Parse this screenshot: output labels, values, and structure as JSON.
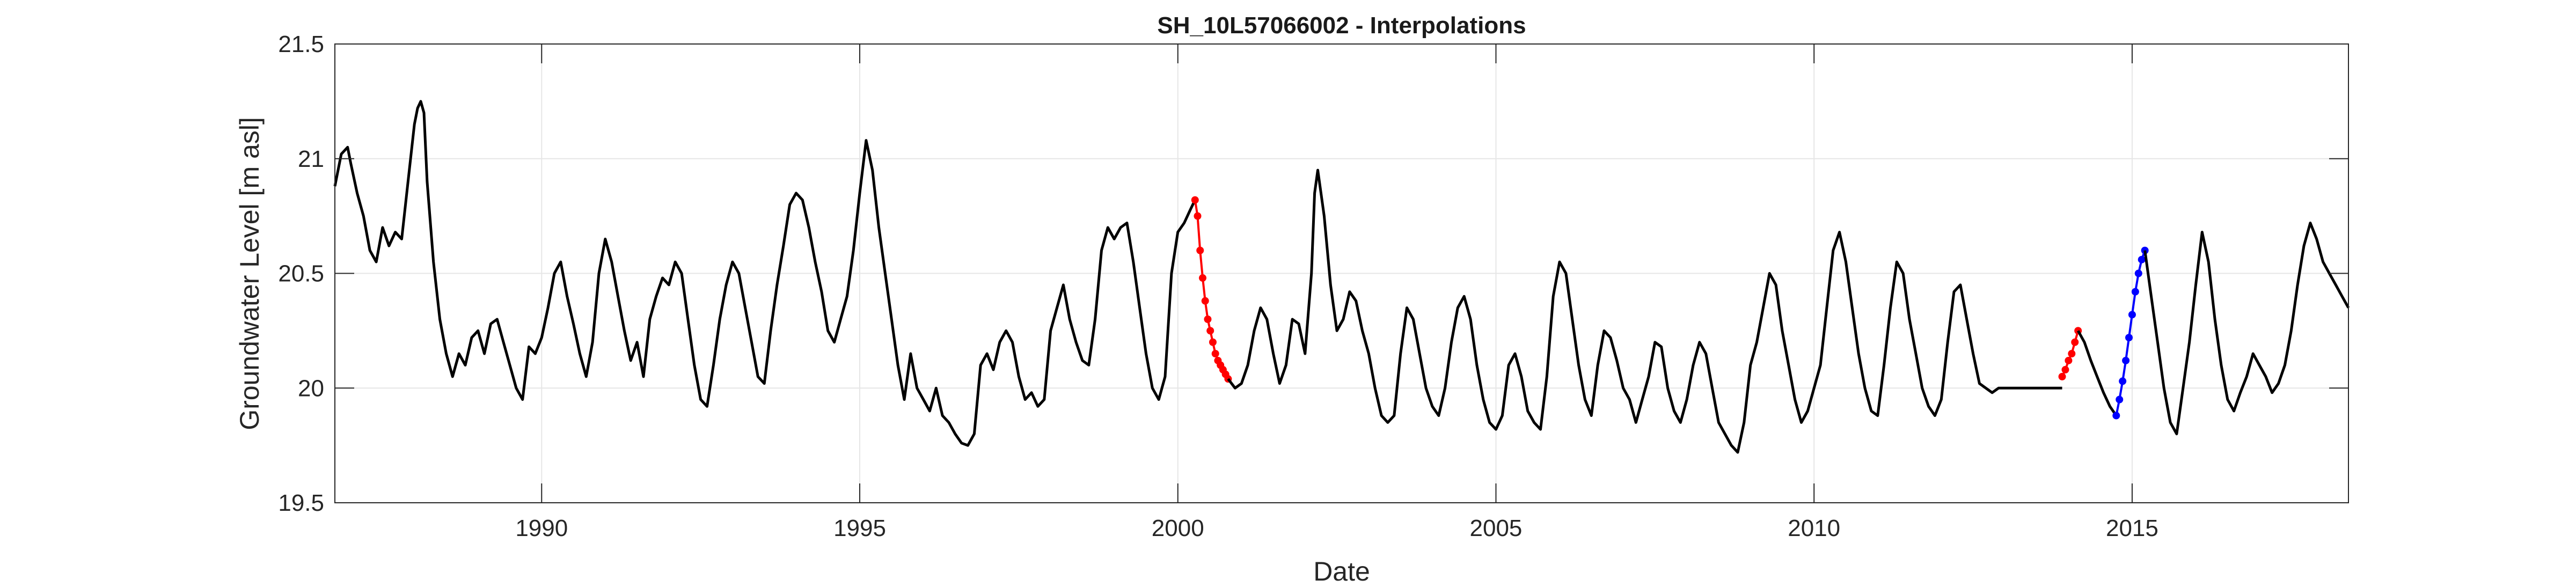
{
  "chart_data": {
    "type": "line",
    "title": "SH_10L57066002 - Interpolations",
    "xlabel": "Date",
    "ylabel": "Groundwater Level [m asl]",
    "xlim": [
      1986.75,
      2018.4
    ],
    "ylim": [
      19.5,
      21.5
    ],
    "xticks": [
      1990,
      1995,
      2000,
      2005,
      2010,
      2015
    ],
    "xtick_labels": [
      "1990",
      "1995",
      "2000",
      "2005",
      "2010",
      "2015"
    ],
    "yticks": [
      19.5,
      20,
      20.5,
      21,
      21.5
    ],
    "ytick_labels": [
      "19.5",
      "20",
      "20.5",
      "21",
      "21.5"
    ],
    "grid": true,
    "colors": {
      "observed": "#000000",
      "interp_red": "#ff0000",
      "interp_blue": "#0000ff"
    },
    "series": [
      {
        "color": "#000000",
        "style": "line",
        "x": [
          1986.75,
          1986.85,
          1986.95,
          1987.0,
          1987.1,
          1987.2,
          1987.3,
          1987.4,
          1987.5,
          1987.6,
          1987.7,
          1987.8,
          1987.9,
          1988.0,
          1988.05,
          1988.1,
          1988.15,
          1988.2,
          1988.3,
          1988.4,
          1988.5,
          1988.6,
          1988.7,
          1988.8,
          1988.9,
          1989.0,
          1989.1,
          1989.2,
          1989.3,
          1989.4,
          1989.5,
          1989.6,
          1989.7,
          1989.8,
          1989.9,
          1990.0,
          1990.1,
          1990.2,
          1990.3,
          1990.4,
          1990.5,
          1990.6,
          1990.7,
          1990.8,
          1990.9,
          1991.0,
          1991.1,
          1991.2,
          1991.3,
          1991.4,
          1991.5,
          1991.6,
          1991.7,
          1991.8,
          1991.9,
          1992.0,
          1992.1,
          1992.2,
          1992.3,
          1992.4,
          1992.5,
          1992.6,
          1992.7,
          1992.8,
          1992.9,
          1993.0,
          1993.1,
          1993.2,
          1993.3,
          1993.4,
          1993.5,
          1993.6,
          1993.7,
          1993.8,
          1993.9,
          1994.0,
          1994.1,
          1994.2,
          1994.3,
          1994.4,
          1994.5,
          1994.6,
          1994.7,
          1994.8,
          1994.9,
          1995.0,
          1995.1,
          1995.2,
          1995.3,
          1995.4,
          1995.5,
          1995.6,
          1995.7,
          1995.8,
          1995.9,
          1996.0,
          1996.1,
          1996.2,
          1996.3,
          1996.4,
          1996.5,
          1996.6,
          1996.7,
          1996.8,
          1996.9,
          1997.0,
          1997.1,
          1997.2,
          1997.3,
          1997.4,
          1997.5,
          1997.6,
          1997.7,
          1997.8,
          1997.9,
          1998.0,
          1998.1,
          1998.2,
          1998.3,
          1998.4,
          1998.5,
          1998.6,
          1998.7,
          1998.8,
          1998.9,
          1999.0,
          1999.1,
          1999.2,
          1999.3,
          1999.4,
          1999.5,
          1999.6,
          1999.7,
          1999.8,
          1999.9,
          2000.0,
          2000.1,
          2000.2,
          2000.27
        ],
        "y": [
          20.88,
          21.02,
          21.05,
          20.98,
          20.85,
          20.75,
          20.6,
          20.55,
          20.7,
          20.62,
          20.68,
          20.65,
          20.9,
          21.15,
          21.22,
          21.25,
          21.2,
          20.9,
          20.55,
          20.3,
          20.15,
          20.05,
          20.15,
          20.1,
          20.22,
          20.25,
          20.15,
          20.28,
          20.3,
          20.2,
          20.1,
          20.0,
          19.95,
          20.18,
          20.15,
          20.22,
          20.35,
          20.5,
          20.55,
          20.4,
          20.28,
          20.15,
          20.05,
          20.2,
          20.5,
          20.65,
          20.55,
          20.4,
          20.25,
          20.12,
          20.2,
          20.05,
          20.3,
          20.4,
          20.48,
          20.45,
          20.55,
          20.5,
          20.3,
          20.1,
          19.95,
          19.92,
          20.1,
          20.3,
          20.45,
          20.55,
          20.5,
          20.35,
          20.2,
          20.05,
          20.02,
          20.25,
          20.45,
          20.62,
          20.8,
          20.85,
          20.82,
          20.7,
          20.55,
          20.42,
          20.25,
          20.2,
          20.3,
          20.4,
          20.6,
          20.85,
          21.08,
          20.95,
          20.7,
          20.5,
          20.3,
          20.1,
          19.95,
          20.15,
          20.0,
          19.95,
          19.9,
          20.0,
          19.88,
          19.85,
          19.8,
          19.76,
          19.75,
          19.8,
          20.1,
          20.15,
          20.08,
          20.2,
          20.25,
          20.2,
          20.05,
          19.95,
          19.98,
          19.92,
          19.95,
          20.25,
          20.35,
          20.45,
          20.3,
          20.2,
          20.12,
          20.1,
          20.3,
          20.6,
          20.7,
          20.65,
          20.7,
          20.72,
          20.55,
          20.35,
          20.15,
          20.0,
          19.95,
          20.05,
          20.5,
          20.68,
          20.72,
          20.78,
          20.82
        ]
      },
      {
        "color": "#ff0000",
        "style": "markers",
        "x": [
          2000.27,
          2000.31,
          2000.35,
          2000.39,
          2000.43,
          2000.47,
          2000.51,
          2000.55,
          2000.59,
          2000.63,
          2000.67,
          2000.71,
          2000.75,
          2000.79
        ],
        "y": [
          20.82,
          20.75,
          20.6,
          20.48,
          20.38,
          20.3,
          20.25,
          20.2,
          20.15,
          20.12,
          20.1,
          20.08,
          20.06,
          20.04
        ]
      },
      {
        "color": "#000000",
        "style": "line",
        "x": [
          2000.79,
          2000.9,
          2001.0,
          2001.1,
          2001.2,
          2001.3,
          2001.4,
          2001.5,
          2001.6,
          2001.7,
          2001.8,
          2001.9,
          2002.0,
          2002.1,
          2002.15,
          2002.2,
          2002.3,
          2002.4,
          2002.5,
          2002.6,
          2002.7,
          2002.8,
          2002.9,
          2003.0,
          2003.1,
          2003.2,
          2003.3,
          2003.4,
          2003.5,
          2003.6,
          2003.7,
          2003.8,
          2003.9,
          2004.0,
          2004.1,
          2004.2,
          2004.3,
          2004.4,
          2004.5,
          2004.6,
          2004.7,
          2004.8,
          2004.9,
          2005.0,
          2005.1,
          2005.2,
          2005.3,
          2005.4,
          2005.5,
          2005.6,
          2005.7,
          2005.8,
          2005.9,
          2006.0,
          2006.1,
          2006.2,
          2006.3,
          2006.4,
          2006.5,
          2006.6,
          2006.7,
          2006.8,
          2006.9,
          2007.0,
          2007.1,
          2007.2,
          2007.3,
          2007.4,
          2007.5,
          2007.6,
          2007.7,
          2007.8,
          2007.9,
          2008.0,
          2008.1,
          2008.2,
          2008.3,
          2008.4,
          2008.5,
          2008.6,
          2008.7,
          2008.8,
          2008.9,
          2009.0,
          2009.1,
          2009.2,
          2009.3,
          2009.4,
          2009.5,
          2009.6,
          2009.7,
          2009.8,
          2009.9,
          2010.0,
          2010.1,
          2010.2,
          2010.3,
          2010.4,
          2010.5,
          2010.6,
          2010.7,
          2010.8,
          2010.9,
          2011.0,
          2011.1,
          2011.2,
          2011.3,
          2011.4,
          2011.5,
          2011.6,
          2011.7,
          2011.8,
          2011.9,
          2012.0,
          2012.1,
          2012.2,
          2012.3,
          2012.4,
          2012.5,
          2012.6,
          2012.7,
          2012.8,
          2012.9,
          2013.0,
          2013.1,
          2013.2,
          2013.3,
          2013.4,
          2013.5,
          2013.6,
          2013.7,
          2013.8,
          2013.9
        ],
        "y": [
          20.04,
          20.0,
          20.02,
          20.1,
          20.25,
          20.35,
          20.3,
          20.15,
          20.02,
          20.1,
          20.3,
          20.28,
          20.15,
          20.5,
          20.85,
          20.95,
          20.75,
          20.45,
          20.25,
          20.3,
          20.42,
          20.38,
          20.25,
          20.15,
          20.0,
          19.88,
          19.85,
          19.88,
          20.15,
          20.35,
          20.3,
          20.15,
          20.0,
          19.92,
          19.88,
          20.0,
          20.2,
          20.35,
          20.4,
          20.3,
          20.1,
          19.95,
          19.85,
          19.82,
          19.88,
          20.1,
          20.15,
          20.05,
          19.9,
          19.85,
          19.82,
          20.05,
          20.4,
          20.55,
          20.5,
          20.3,
          20.1,
          19.95,
          19.88,
          20.1,
          20.25,
          20.22,
          20.12,
          20.0,
          19.95,
          19.85,
          19.95,
          20.05,
          20.2,
          20.18,
          20.0,
          19.9,
          19.85,
          19.95,
          20.1,
          20.2,
          20.15,
          20.0,
          19.85,
          19.8,
          19.75,
          19.72,
          19.85,
          20.1,
          20.2,
          20.35,
          20.5,
          20.45,
          20.25,
          20.1,
          19.95,
          19.85,
          19.9,
          20.0,
          20.1,
          20.35,
          20.6,
          20.68,
          20.55,
          20.35,
          20.15,
          20.0,
          19.9,
          19.88,
          20.1,
          20.35,
          20.55,
          20.5,
          20.3,
          20.15,
          20.0,
          19.92,
          19.88,
          19.95,
          20.2,
          20.42,
          20.45,
          20.3,
          20.15,
          20.02,
          20.0,
          19.98,
          20.0,
          20.0,
          20.0,
          20.0,
          20.0,
          20.0,
          20.0,
          20.0,
          20.0,
          20.0,
          20.0
        ]
      },
      {
        "color": "#ff0000",
        "style": "markers",
        "x": [
          2013.9,
          2013.95,
          2014.0,
          2014.05,
          2014.1,
          2014.15
        ],
        "y": [
          20.05,
          20.08,
          20.12,
          20.15,
          20.2,
          20.25
        ]
      },
      {
        "color": "#000000",
        "style": "line",
        "x": [
          2014.15,
          2014.25,
          2014.35,
          2014.45,
          2014.55,
          2014.65,
          2014.75
        ],
        "y": [
          20.25,
          20.2,
          20.12,
          20.05,
          19.98,
          19.92,
          19.88
        ]
      },
      {
        "color": "#0000ff",
        "style": "markers",
        "x": [
          2014.75,
          2014.8,
          2014.85,
          2014.9,
          2014.95,
          2015.0,
          2015.05,
          2015.1,
          2015.15,
          2015.2
        ],
        "y": [
          19.88,
          19.95,
          20.03,
          20.12,
          20.22,
          20.32,
          20.42,
          20.5,
          20.56,
          20.6
        ]
      },
      {
        "color": "#000000",
        "style": "line",
        "x": [
          2015.2,
          2015.3,
          2015.4,
          2015.5,
          2015.6,
          2015.7,
          2015.8,
          2015.9,
          2016.0,
          2016.1,
          2016.2,
          2016.3,
          2016.4,
          2016.5,
          2016.6,
          2016.7,
          2016.8,
          2016.9,
          2017.0,
          2017.1,
          2017.2,
          2017.3,
          2017.4,
          2017.5,
          2017.6,
          2017.7,
          2017.8,
          2017.9,
          2018.0,
          2018.1,
          2018.2,
          2018.3,
          2018.4
        ],
        "y": [
          20.6,
          20.4,
          20.2,
          20.0,
          19.85,
          19.8,
          20.0,
          20.2,
          20.45,
          20.68,
          20.55,
          20.3,
          20.1,
          19.95,
          19.9,
          19.98,
          20.05,
          20.15,
          20.1,
          20.05,
          19.98,
          20.02,
          20.1,
          20.25,
          20.45,
          20.62,
          20.72,
          20.65,
          20.55,
          20.5,
          20.45,
          20.4,
          20.35
        ]
      }
    ]
  }
}
